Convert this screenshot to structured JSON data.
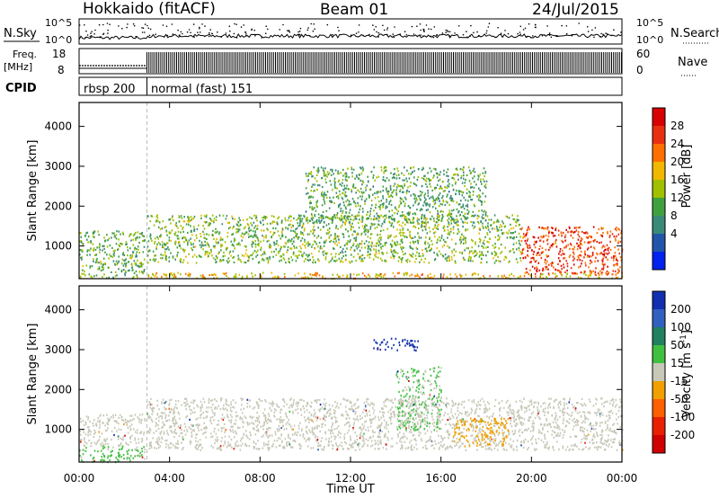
{
  "header": {
    "radar": "Hokkaido (fitACF)",
    "beam": "Beam 01",
    "date": "24/Jul/2015"
  },
  "noise_panel": {
    "left_label": "N.Sky",
    "right_label": "N.Search",
    "left_ticks": [
      "10^5",
      "10^0"
    ],
    "right_ticks": [
      "10^5",
      "10^0"
    ]
  },
  "freq_panel": {
    "left_label_1": "Freq.",
    "left_label_2": "[MHz]",
    "left_ticks": [
      "18",
      "8"
    ],
    "right_label": "Nave",
    "right_ticks": [
      "60",
      "0"
    ]
  },
  "cpid_panel": {
    "label": "CPID",
    "modes": [
      {
        "name": "rbsp 200",
        "start_hour": 0,
        "end_hour": 3
      },
      {
        "name": "normal (fast) 151",
        "start_hour": 3,
        "end_hour": 24
      }
    ]
  },
  "x_axis": {
    "label": "Time UT",
    "ticks": [
      "00:00",
      "04:00",
      "08:00",
      "12:00",
      "16:00",
      "20:00",
      "00:00"
    ]
  },
  "power_panel": {
    "ylabel": "Slant Range [km]",
    "yticks": [
      "1000",
      "2000",
      "3000",
      "4000"
    ],
    "colorbar_label": "Power [dB]",
    "colorbar_ticks": [
      "28",
      "24",
      "20",
      "16",
      "12",
      "8",
      "4"
    ],
    "colors": [
      "#0022ee",
      "#2255aa",
      "#3a8a7a",
      "#40a040",
      "#a0c000",
      "#f0b800",
      "#ff7000",
      "#e83010",
      "#d80000"
    ]
  },
  "velocity_panel": {
    "ylabel": "Slant Range [km]",
    "yticks": [
      "1000",
      "2000",
      "3000",
      "4000"
    ],
    "colorbar_label": "Velocity [m s^-1]",
    "colorbar_ticks": [
      "200",
      "100",
      "50",
      "15",
      "-15",
      "-50",
      "-100",
      "-200"
    ],
    "colors": [
      "#1030b0",
      "#3060c0",
      "#208060",
      "#40c040",
      "#c8c8b8",
      "#f0a000",
      "#ff6000",
      "#e82000",
      "#d00000"
    ]
  },
  "chart_data": [
    {
      "type": "heatmap",
      "title": "Power",
      "xlabel": "Time UT",
      "ylabel": "Slant Range [km]",
      "xlim": [
        0,
        24
      ],
      "ylim": [
        180,
        4600
      ],
      "clim": [
        0,
        32
      ],
      "colorbar_label": "Power [dB]",
      "regions": [
        {
          "t0": 0.0,
          "t1": 2.9,
          "r0": 200,
          "r1": 1400,
          "value": 13
        },
        {
          "t0": 3.0,
          "t1": 19.5,
          "r0": 600,
          "r1": 1800,
          "value": 14
        },
        {
          "t0": 10.0,
          "t1": 18.0,
          "r0": 1600,
          "r1": 3000,
          "value": 12
        },
        {
          "t0": 19.5,
          "t1": 24.0,
          "r0": 300,
          "r1": 1500,
          "value": 26
        },
        {
          "t0": 3.0,
          "t1": 24.0,
          "r0": 200,
          "r1": 350,
          "value": 20
        }
      ]
    },
    {
      "type": "heatmap",
      "title": "Velocity",
      "xlabel": "Time UT",
      "ylabel": "Slant Range [km]",
      "xlim": [
        0,
        24
      ],
      "ylim": [
        180,
        4600
      ],
      "clim": [
        -250,
        250
      ],
      "colorbar_label": "Velocity [m s^-1]",
      "regions": [
        {
          "t0": 0.0,
          "t1": 2.9,
          "r0": 600,
          "r1": 1400,
          "value": 0
        },
        {
          "t0": 0.0,
          "t1": 2.9,
          "r0": 200,
          "r1": 600,
          "value": 40
        },
        {
          "t0": 3.0,
          "t1": 24.0,
          "r0": 500,
          "r1": 1800,
          "value": 0
        },
        {
          "t0": 14.0,
          "t1": 16.0,
          "r0": 1000,
          "r1": 2600,
          "value": 30
        },
        {
          "t0": 16.5,
          "t1": 19.0,
          "r0": 600,
          "r1": 1300,
          "value": -60
        },
        {
          "t0": 13.0,
          "t1": 15.0,
          "r0": 3000,
          "r1": 3300,
          "value": 220
        }
      ]
    }
  ]
}
